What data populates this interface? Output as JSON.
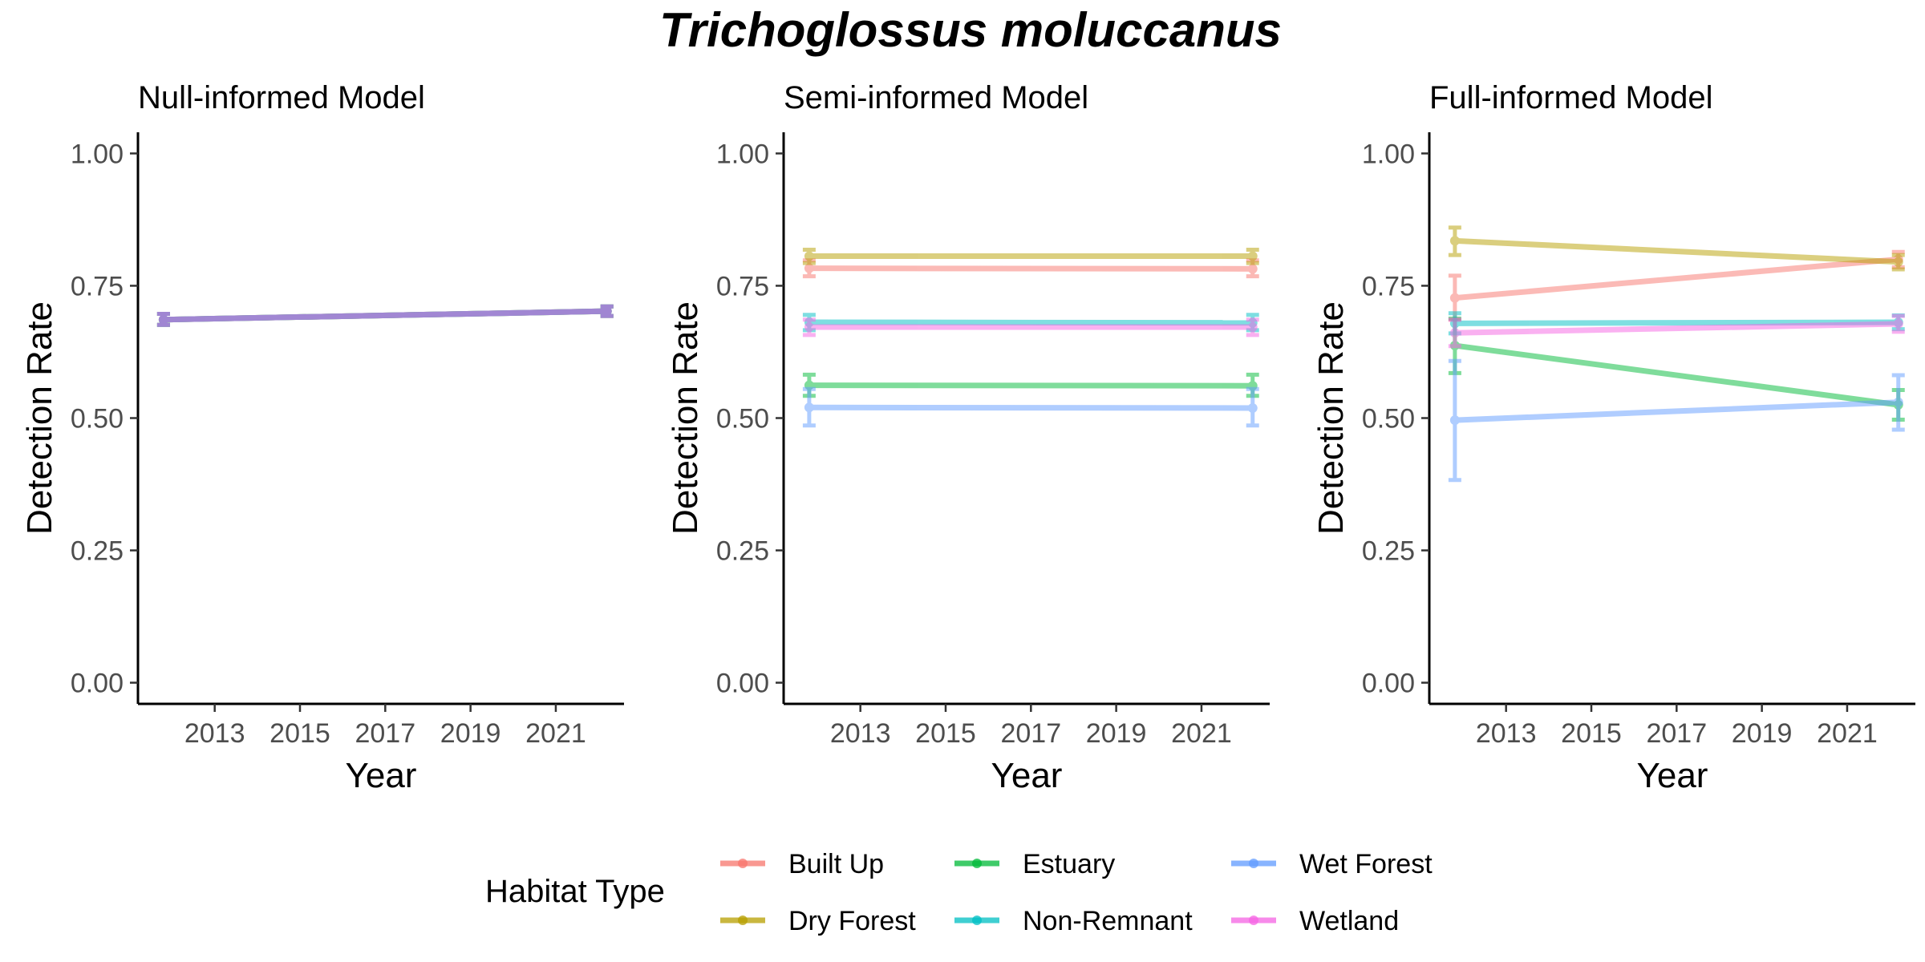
{
  "title": "Trichoglossus moluccanus",
  "chart_data": {
    "type": "line",
    "title": "Trichoglossus moluccanus",
    "xlabel": "Year",
    "ylabel": "Detection Rate",
    "xlim": [
      2011.2,
      2022.6
    ],
    "ylim": [
      -0.04,
      1.04
    ],
    "x_ticks": [
      "2013",
      "2015",
      "2017",
      "2019",
      "2021"
    ],
    "y_ticks": [
      "0.00",
      "0.25",
      "0.50",
      "0.75",
      "1.00"
    ],
    "grid": false,
    "legend": {
      "title": "Habitat Type",
      "position": "bottom",
      "entries": [
        {
          "name": "Built Up",
          "color": "#F8766D"
        },
        {
          "name": "Dry Forest",
          "color": "#B79F00"
        },
        {
          "name": "Estuary",
          "color": "#00BA38"
        },
        {
          "name": "Non-Remnant",
          "color": "#00BFC4"
        },
        {
          "name": "Wet Forest",
          "color": "#619CFF"
        },
        {
          "name": "Wetland",
          "color": "#F564E3"
        }
      ]
    },
    "panels": [
      {
        "title": "Null-informed Model",
        "series": [
          {
            "name": "Built Up",
            "color": "#F8766D",
            "x": [
              2011.8,
              2022.2
            ],
            "y": [
              0.686,
              0.702
            ],
            "ci": [
              [
                0.676,
                0.697
              ],
              [
                0.693,
                0.711
              ]
            ]
          },
          {
            "name": "Dry Forest",
            "color": "#B79F00",
            "x": [
              2011.8,
              2022.2
            ],
            "y": [
              0.686,
              0.702
            ],
            "ci": [
              [
                0.676,
                0.697
              ],
              [
                0.693,
                0.711
              ]
            ]
          },
          {
            "name": "Estuary",
            "color": "#00BA38",
            "x": [
              2011.8,
              2022.2
            ],
            "y": [
              0.686,
              0.702
            ],
            "ci": [
              [
                0.676,
                0.697
              ],
              [
                0.693,
                0.711
              ]
            ]
          },
          {
            "name": "Non-Remnant",
            "color": "#00BFC4",
            "x": [
              2011.8,
              2022.2
            ],
            "y": [
              0.686,
              0.702
            ],
            "ci": [
              [
                0.676,
                0.697
              ],
              [
                0.693,
                0.711
              ]
            ]
          },
          {
            "name": "Wet Forest",
            "color": "#619CFF",
            "x": [
              2011.8,
              2022.2
            ],
            "y": [
              0.686,
              0.702
            ],
            "ci": [
              [
                0.676,
                0.697
              ],
              [
                0.693,
                0.711
              ]
            ]
          },
          {
            "name": "Wetland",
            "color": "#F564E3",
            "x": [
              2011.8,
              2022.2
            ],
            "y": [
              0.686,
              0.702
            ],
            "ci": [
              [
                0.676,
                0.697
              ],
              [
                0.693,
                0.711
              ]
            ]
          }
        ]
      },
      {
        "title": "Semi-informed Model",
        "series": [
          {
            "name": "Built Up",
            "color": "#F8766D",
            "x": [
              2011.8,
              2022.2
            ],
            "y": [
              0.783,
              0.782
            ],
            "ci": [
              [
                0.768,
                0.798
              ],
              [
                0.768,
                0.798
              ]
            ]
          },
          {
            "name": "Dry Forest",
            "color": "#B79F00",
            "x": [
              2011.8,
              2022.2
            ],
            "y": [
              0.806,
              0.806
            ],
            "ci": [
              [
                0.793,
                0.818
              ],
              [
                0.793,
                0.818
              ]
            ]
          },
          {
            "name": "Estuary",
            "color": "#00BA38",
            "x": [
              2011.8,
              2022.2
            ],
            "y": [
              0.562,
              0.561
            ],
            "ci": [
              [
                0.542,
                0.582
              ],
              [
                0.542,
                0.582
              ]
            ]
          },
          {
            "name": "Non-Remnant",
            "color": "#00BFC4",
            "x": [
              2011.8,
              2022.2
            ],
            "y": [
              0.681,
              0.68
            ],
            "ci": [
              [
                0.666,
                0.695
              ],
              [
                0.666,
                0.695
              ]
            ]
          },
          {
            "name": "Wet Forest",
            "color": "#619CFF",
            "x": [
              2011.8,
              2022.2
            ],
            "y": [
              0.52,
              0.519
            ],
            "ci": [
              [
                0.486,
                0.555
              ],
              [
                0.486,
                0.555
              ]
            ]
          },
          {
            "name": "Wetland",
            "color": "#F564E3",
            "x": [
              2011.8,
              2022.2
            ],
            "y": [
              0.672,
              0.672
            ],
            "ci": [
              [
                0.657,
                0.686
              ],
              [
                0.657,
                0.686
              ]
            ]
          }
        ]
      },
      {
        "title": "Full-informed Model",
        "series": [
          {
            "name": "Built Up",
            "color": "#F8766D",
            "x": [
              2011.8,
              2022.2
            ],
            "y": [
              0.727,
              0.8
            ],
            "ci": [
              [
                0.686,
                0.769
              ],
              [
                0.785,
                0.814
              ]
            ]
          },
          {
            "name": "Dry Forest",
            "color": "#B79F00",
            "x": [
              2011.8,
              2022.2
            ],
            "y": [
              0.835,
              0.795
            ],
            "ci": [
              [
                0.808,
                0.86
              ],
              [
                0.781,
                0.808
              ]
            ]
          },
          {
            "name": "Estuary",
            "color": "#00BA38",
            "x": [
              2011.8,
              2022.2
            ],
            "y": [
              0.637,
              0.525
            ],
            "ci": [
              [
                0.585,
                0.688
              ],
              [
                0.497,
                0.553
              ]
            ]
          },
          {
            "name": "Non-Remnant",
            "color": "#00BFC4",
            "x": [
              2011.8,
              2022.2
            ],
            "y": [
              0.679,
              0.681
            ],
            "ci": [
              [
                0.66,
                0.698
              ],
              [
                0.668,
                0.694
              ]
            ]
          },
          {
            "name": "Wet Forest",
            "color": "#619CFF",
            "x": [
              2011.8,
              2022.2
            ],
            "y": [
              0.496,
              0.53
            ],
            "ci": [
              [
                0.383,
                0.608
              ],
              [
                0.478,
                0.581
              ]
            ]
          },
          {
            "name": "Wetland",
            "color": "#F564E3",
            "x": [
              2011.8,
              2022.2
            ],
            "y": [
              0.661,
              0.678
            ],
            "ci": [
              [
                0.636,
                0.686
              ],
              [
                0.663,
                0.693
              ]
            ]
          }
        ]
      }
    ]
  }
}
